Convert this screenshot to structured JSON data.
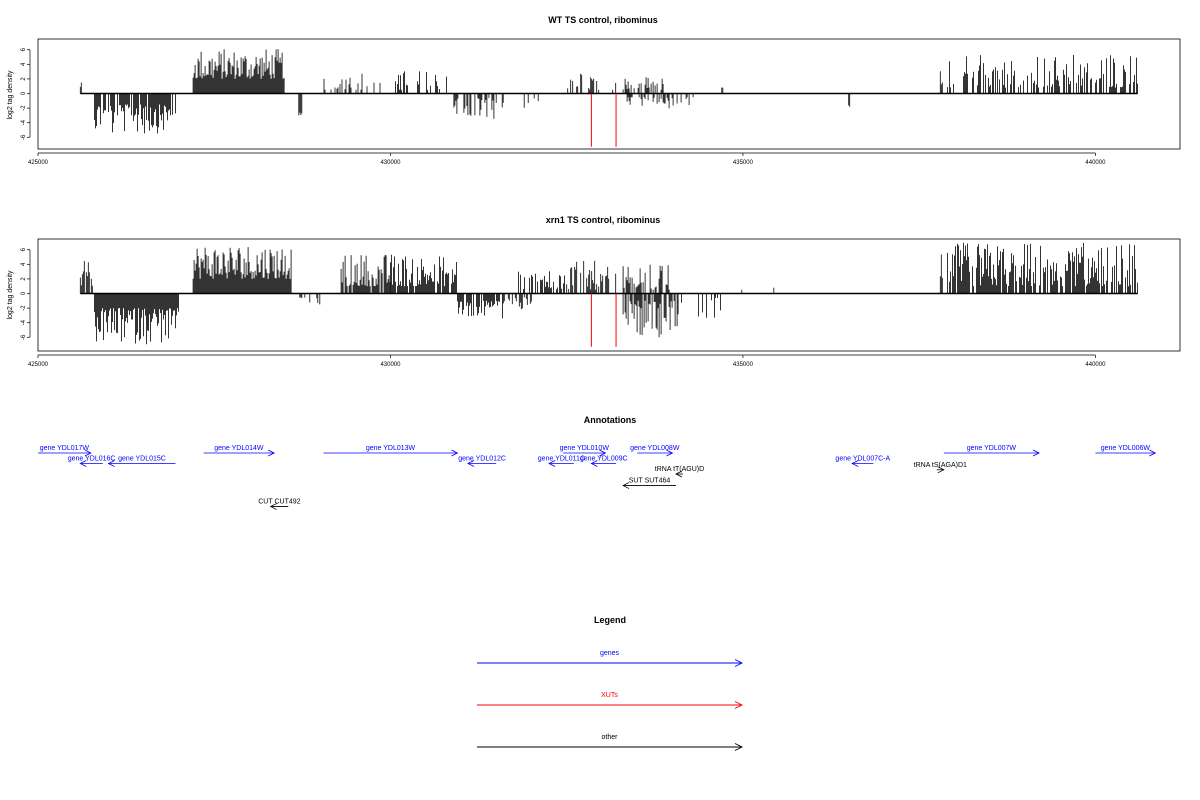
{
  "colors": {
    "genes": "#0000ff",
    "xuts": "#ff0000",
    "other": "#000000",
    "positive": "#000000",
    "negative": "#000000"
  },
  "chart_data": [
    {
      "type": "bar",
      "title": "WT TS control, ribominus",
      "ylabel": "log2 tag density",
      "xlim": [
        425000,
        441200
      ],
      "ylim": [
        -7.5,
        7.5
      ],
      "x_ticks": [
        425000,
        430000,
        435000,
        440000
      ],
      "y_ticks": [
        6,
        4,
        2,
        0,
        -2,
        -4,
        -6
      ],
      "baseline": [
        425600,
        440600
      ],
      "segments": [
        {
          "start": 425600,
          "end": 425620,
          "sign": 1,
          "min": 0.8,
          "max": 1.5,
          "density": 1.0
        },
        {
          "start": 425800,
          "end": 426950,
          "sign": -1,
          "min": 1.5,
          "max": 5.5,
          "density": 0.8
        },
        {
          "start": 427200,
          "end": 428500,
          "sign": 1,
          "min": 2.0,
          "max": 6.2,
          "density": 1.0
        },
        {
          "start": 428700,
          "end": 428750,
          "sign": -1,
          "min": 2.5,
          "max": 3.0,
          "density": 0.6
        },
        {
          "start": 429000,
          "end": 430000,
          "sign": 1,
          "min": 0.5,
          "max": 3.0,
          "density": 0.25
        },
        {
          "start": 430000,
          "end": 430900,
          "sign": 1,
          "min": 0.5,
          "max": 3.2,
          "density": 0.3
        },
        {
          "start": 430900,
          "end": 431500,
          "sign": -1,
          "min": 0.5,
          "max": 3.5,
          "density": 0.5
        },
        {
          "start": 431500,
          "end": 432100,
          "sign": -1,
          "min": 0.5,
          "max": 2.0,
          "density": 0.2
        },
        {
          "start": 432500,
          "end": 433200,
          "sign": 1,
          "min": 0.5,
          "max": 3.0,
          "density": 0.4
        },
        {
          "start": 433300,
          "end": 433900,
          "sign": 1,
          "min": 0.5,
          "max": 2.5,
          "density": 0.4
        },
        {
          "start": 433300,
          "end": 434300,
          "sign": -1,
          "min": 0.5,
          "max": 2.2,
          "density": 0.4
        },
        {
          "start": 434700,
          "end": 434720,
          "sign": 1,
          "min": 0.8,
          "max": 1.0,
          "density": 1.0
        },
        {
          "start": 436500,
          "end": 436520,
          "sign": -1,
          "min": 1.5,
          "max": 2.0,
          "density": 1.0
        },
        {
          "start": 437800,
          "end": 437830,
          "sign": 1,
          "min": 1.0,
          "max": 5.0,
          "density": 1.0
        },
        {
          "start": 437900,
          "end": 440600,
          "sign": 1,
          "min": 0.8,
          "max": 5.5,
          "density": 0.55
        }
      ],
      "red_lines": [
        {
          "x": 432850,
          "y": -7.3
        },
        {
          "x": 433200,
          "y": -7.3
        }
      ]
    },
    {
      "type": "bar",
      "title": "xrn1 TS control, ribominus",
      "ylabel": "log2 tag density",
      "xlim": [
        425000,
        441200
      ],
      "ylim": [
        -7.5,
        7.5
      ],
      "x_ticks": [
        425000,
        430000,
        435000,
        440000
      ],
      "y_ticks": [
        6,
        4,
        2,
        0,
        -2,
        -4,
        -6
      ],
      "baseline": [
        425600,
        440600
      ],
      "segments": [
        {
          "start": 425600,
          "end": 425780,
          "sign": 1,
          "min": 1.0,
          "max": 5.0,
          "density": 0.8
        },
        {
          "start": 425800,
          "end": 427000,
          "sign": -1,
          "min": 2.0,
          "max": 7.0,
          "density": 1.0
        },
        {
          "start": 427200,
          "end": 428600,
          "sign": 1,
          "min": 2.0,
          "max": 7.0,
          "density": 1.0
        },
        {
          "start": 428700,
          "end": 429100,
          "sign": -1,
          "min": 0.5,
          "max": 1.5,
          "density": 0.3
        },
        {
          "start": 429300,
          "end": 430000,
          "sign": 1,
          "min": 1.0,
          "max": 5.5,
          "density": 0.9
        },
        {
          "start": 430000,
          "end": 430950,
          "sign": 1,
          "min": 1.0,
          "max": 5.5,
          "density": 0.9
        },
        {
          "start": 430950,
          "end": 431600,
          "sign": -1,
          "min": 1.0,
          "max": 3.5,
          "density": 0.8
        },
        {
          "start": 431600,
          "end": 432000,
          "sign": -1,
          "min": 0.5,
          "max": 2.5,
          "density": 0.4
        },
        {
          "start": 431800,
          "end": 432500,
          "sign": 1,
          "min": 0.5,
          "max": 3.5,
          "density": 0.5
        },
        {
          "start": 432500,
          "end": 433200,
          "sign": 1,
          "min": 0.5,
          "max": 4.5,
          "density": 0.6
        },
        {
          "start": 433300,
          "end": 434100,
          "sign": -1,
          "min": 1.0,
          "max": 6.0,
          "density": 0.8
        },
        {
          "start": 433300,
          "end": 434000,
          "sign": 1,
          "min": 0.5,
          "max": 4.0,
          "density": 0.6
        },
        {
          "start": 434100,
          "end": 434800,
          "sign": -1,
          "min": 0.5,
          "max": 3.5,
          "density": 0.2
        },
        {
          "start": 434800,
          "end": 435500,
          "sign": 1,
          "min": 0.5,
          "max": 1.0,
          "density": 0.1
        },
        {
          "start": 437800,
          "end": 437830,
          "sign": 1,
          "min": 2.0,
          "max": 5.5,
          "density": 1.0
        },
        {
          "start": 437900,
          "end": 440600,
          "sign": 1,
          "min": 1.0,
          "max": 7.0,
          "density": 0.85
        }
      ],
      "red_lines": [
        {
          "x": 432850,
          "y": -7.3
        },
        {
          "x": 433200,
          "y": -7.3
        }
      ]
    }
  ],
  "annotations": {
    "title": "Annotations",
    "items": [
      {
        "label": "gene YDL017W",
        "start": 424800,
        "end": 425750,
        "row": 0,
        "dir": "right",
        "kind": "genes"
      },
      {
        "label": "gene YDL016C",
        "start": 425600,
        "end": 425920,
        "row": 1,
        "dir": "left",
        "kind": "genes"
      },
      {
        "label": "gene YDL015C",
        "start": 426000,
        "end": 426950,
        "row": 1,
        "dir": "left",
        "kind": "genes"
      },
      {
        "label": "gene YDL014W",
        "start": 427350,
        "end": 428350,
        "row": 0,
        "dir": "right",
        "kind": "genes"
      },
      {
        "label": "gene YDL013W",
        "start": 429050,
        "end": 430950,
        "row": 0,
        "dir": "right",
        "kind": "genes"
      },
      {
        "label": "gene YDL012C",
        "start": 431100,
        "end": 431500,
        "row": 1,
        "dir": "left",
        "kind": "genes"
      },
      {
        "label": "gene YDL010W",
        "start": 432450,
        "end": 433050,
        "row": 0,
        "dir": "right",
        "kind": "genes"
      },
      {
        "label": "gene YDL011C",
        "start": 432250,
        "end": 432600,
        "row": 1,
        "dir": "left",
        "kind": "genes"
      },
      {
        "label": "gene YDL009C",
        "start": 432850,
        "end": 433200,
        "row": 1,
        "dir": "left",
        "kind": "genes"
      },
      {
        "label": "gene YDL008W",
        "start": 433500,
        "end": 434000,
        "row": 0,
        "dir": "right",
        "kind": "genes"
      },
      {
        "label": "gene YDL007C-A",
        "start": 436550,
        "end": 436850,
        "row": 1,
        "dir": "left",
        "kind": "genes"
      },
      {
        "label": "gene YDL007W",
        "start": 437850,
        "end": 439200,
        "row": 0,
        "dir": "right",
        "kind": "genes"
      },
      {
        "label": "gene YDL006W",
        "start": 440000,
        "end": 440850,
        "row": 0,
        "dir": "right",
        "kind": "genes"
      },
      {
        "label": "tRNA tT(AGU)D",
        "start": 434050,
        "end": 434150,
        "row": 2,
        "dir": "left",
        "kind": "other"
      },
      {
        "label": "tRNA tS(AGA)D1",
        "start": 437750,
        "end": 437850,
        "row": 1.6,
        "dir": "right",
        "kind": "other"
      },
      {
        "label": "SUT SUT464",
        "start": 433300,
        "end": 434050,
        "row": 3.1,
        "dir": "left",
        "kind": "other"
      },
      {
        "label": "CUT CUT492",
        "start": 428300,
        "end": 428550,
        "row": 5.1,
        "dir": "left",
        "kind": "other"
      }
    ]
  },
  "legend": {
    "title": "Legend",
    "items": [
      {
        "label": "genes",
        "kind": "genes"
      },
      {
        "label": "XUTs",
        "kind": "xuts"
      },
      {
        "label": "other",
        "kind": "other"
      }
    ]
  }
}
